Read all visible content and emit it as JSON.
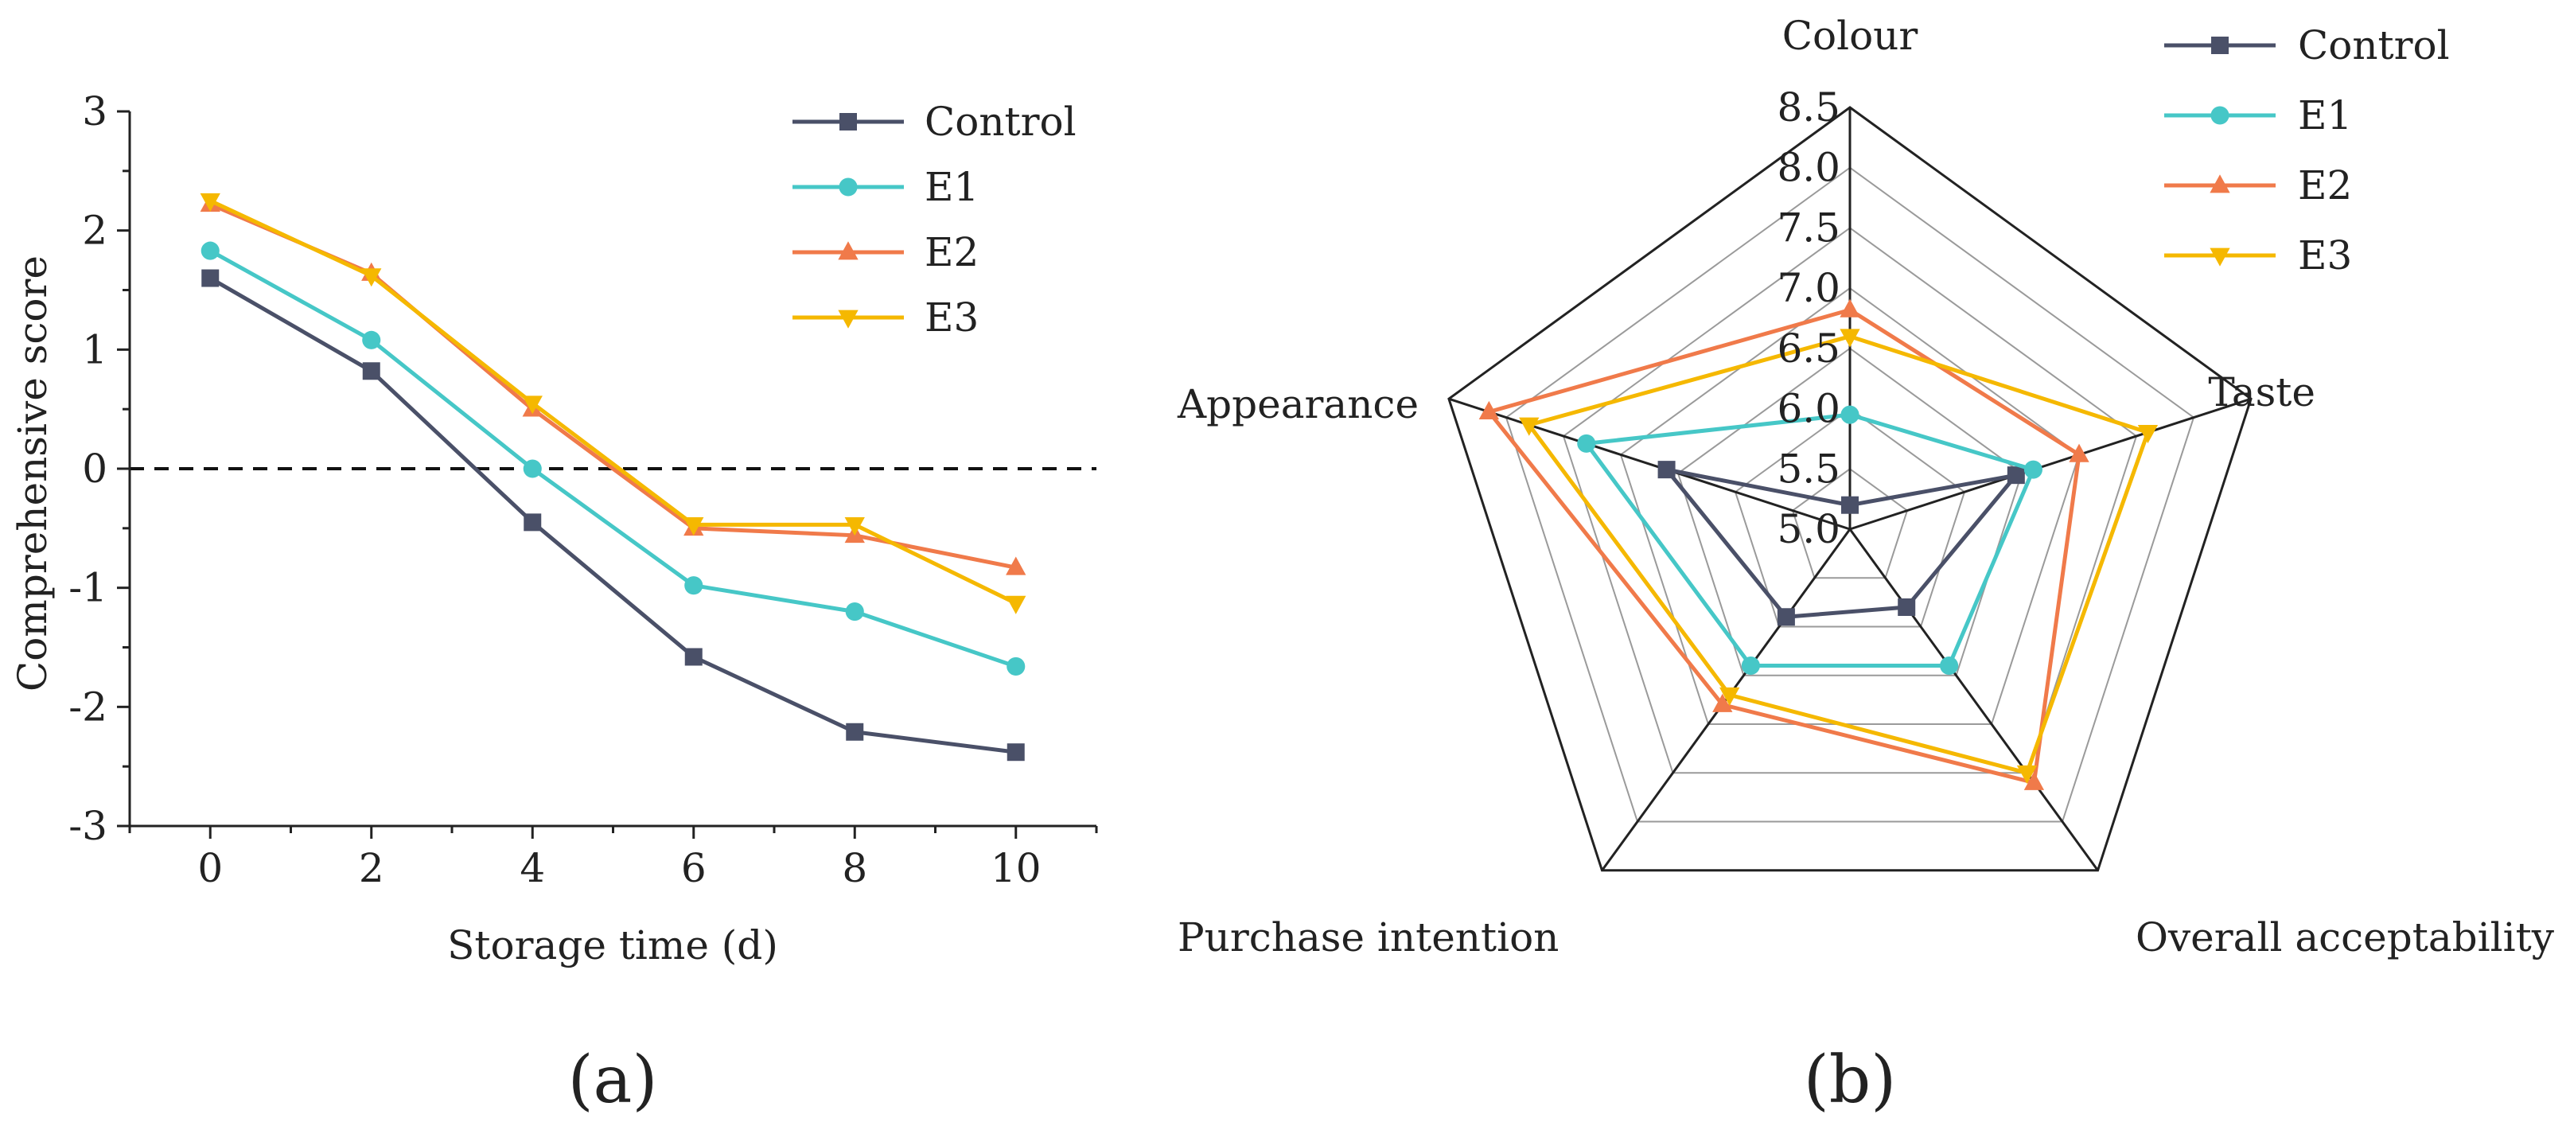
{
  "chart_data": [
    {
      "type": "line",
      "panel_label": "(a)",
      "xlabel": "Storage time (d)",
      "ylabel": "Comprehensive score",
      "x": [
        0,
        2,
        4,
        6,
        8,
        10
      ],
      "x_tick_labels": [
        "0",
        "2",
        "4",
        "6",
        "8",
        "10"
      ],
      "xlim": [
        -1,
        11
      ],
      "ylim": [
        -3,
        3
      ],
      "y_ticks": [
        -3,
        -2,
        -1,
        0,
        1,
        2,
        3
      ],
      "y_tick_labels": [
        "-3",
        "-2",
        "-1",
        "0",
        "1",
        "2",
        "3"
      ],
      "reference_line": {
        "y": 0,
        "style": "dashed"
      },
      "legend_position": "top-right",
      "series": [
        {
          "name": "Control",
          "color": "#4a5068",
          "marker": "square",
          "values": [
            1.6,
            0.82,
            -0.45,
            -1.58,
            -2.21,
            -2.38
          ]
        },
        {
          "name": "E1",
          "color": "#46c7c7",
          "marker": "circle",
          "values": [
            1.83,
            1.08,
            0.0,
            -0.98,
            -1.2,
            -1.66
          ]
        },
        {
          "name": "E2",
          "color": "#f07a4a",
          "marker": "triangle-up",
          "values": [
            2.22,
            1.64,
            0.5,
            -0.5,
            -0.56,
            -0.83
          ]
        },
        {
          "name": "E3",
          "color": "#f5b800",
          "marker": "triangle-down",
          "values": [
            2.25,
            1.62,
            0.55,
            -0.47,
            -0.47,
            -1.13
          ]
        }
      ]
    },
    {
      "type": "radar",
      "panel_label": "(b)",
      "axes": [
        "Colour",
        "Taste",
        "Overall acceptability",
        "Purchase intention",
        "Appearance"
      ],
      "range": [
        5.0,
        8.5
      ],
      "ticks": [
        5.0,
        5.5,
        6.0,
        6.5,
        7.0,
        7.5,
        8.0,
        8.5
      ],
      "tick_labels": [
        "5.0",
        "5.5",
        "6.0",
        "6.5",
        "7.0",
        "7.5",
        "8.0",
        "8.5"
      ],
      "legend_position": "top-right",
      "series": [
        {
          "name": "Control",
          "color": "#4a5068",
          "marker": "square",
          "values": [
            5.2,
            6.45,
            5.8,
            5.9,
            6.6
          ]
        },
        {
          "name": "E1",
          "color": "#46c7c7",
          "marker": "circle",
          "values": [
            5.95,
            6.6,
            6.4,
            6.4,
            7.3
          ]
        },
        {
          "name": "E2",
          "color": "#f07a4a",
          "marker": "triangle-up",
          "values": [
            6.82,
            7.0,
            7.6,
            6.8,
            8.15
          ]
        },
        {
          "name": "E3",
          "color": "#f5b800",
          "marker": "triangle-down",
          "values": [
            6.6,
            7.6,
            7.5,
            6.7,
            7.8
          ]
        }
      ]
    }
  ]
}
